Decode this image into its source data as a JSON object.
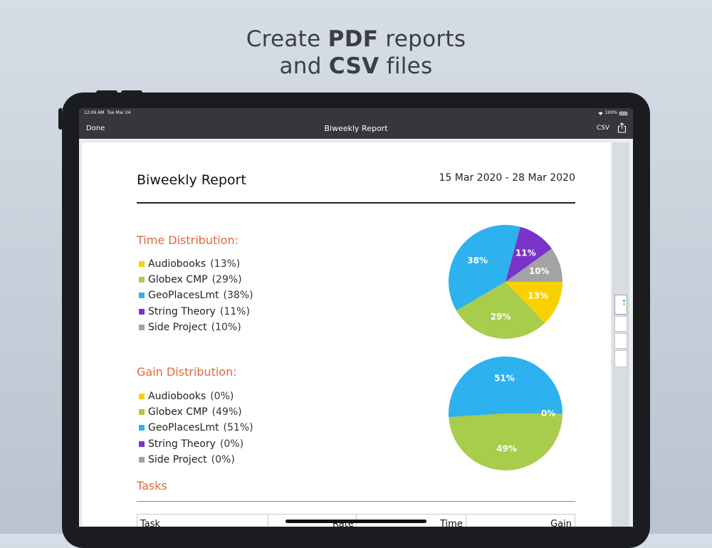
{
  "headline": {
    "line1_pre": "Create ",
    "line1_bold": "PDF",
    "line1_post": " reports",
    "line2_pre": "and ",
    "line2_bold": "CSV",
    "line2_post": " files"
  },
  "status_bar": {
    "time": "12:06 AM",
    "date": "Tue Mar 24",
    "battery": "100%"
  },
  "nav_bar": {
    "done_label": "Done",
    "title": "Biweekly Report",
    "csv_label": "CSV"
  },
  "report": {
    "title": "Biweekly Report",
    "date_range": "15 Mar 2020 - 28 Mar 2020",
    "time_distribution": {
      "heading": "Time Distribution:",
      "items": [
        {
          "name": "Audiobooks",
          "pct_label": "(13%)",
          "value": 13,
          "color": "#f9d100"
        },
        {
          "name": "Globex CMP",
          "pct_label": "(29%)",
          "value": 29,
          "color": "#a8cc4c"
        },
        {
          "name": "GeoPlacesLmt",
          "pct_label": "(38%)",
          "value": 38,
          "color": "#2db1ef"
        },
        {
          "name": "String Theory",
          "pct_label": "(11%)",
          "value": 11,
          "color": "#7a33c9"
        },
        {
          "name": "Side Project",
          "pct_label": "(10%)",
          "value": 10,
          "color": "#a3a3a3"
        }
      ]
    },
    "gain_distribution": {
      "heading": "Gain Distribution:",
      "items": [
        {
          "name": "Audiobooks",
          "pct_label": "(0%)",
          "value": 0,
          "color": "#f9d100"
        },
        {
          "name": "Globex CMP",
          "pct_label": "(49%)",
          "value": 49,
          "color": "#a8cc4c"
        },
        {
          "name": "GeoPlacesLmt",
          "pct_label": "(51%)",
          "value": 51,
          "color": "#2db1ef"
        },
        {
          "name": "String Theory",
          "pct_label": "(0%)",
          "value": 0,
          "color": "#7a33c9"
        },
        {
          "name": "Side Project",
          "pct_label": "(0%)",
          "value": 0,
          "color": "#a3a3a3"
        }
      ]
    },
    "tasks": {
      "heading": "Tasks",
      "columns": [
        "Task",
        "Rate",
        "Time",
        "Gain"
      ]
    }
  },
  "chart_data": [
    {
      "type": "pie",
      "categories": [
        "Audiobooks",
        "Globex CMP",
        "GeoPlacesLmt",
        "String Theory",
        "Side Project"
      ],
      "values": [
        13,
        29,
        38,
        11,
        10
      ],
      "labels": [
        "13%",
        "29%",
        "38%",
        "11%",
        "10%"
      ],
      "colors": [
        "#f9d100",
        "#a8cc4c",
        "#2db1ef",
        "#7a33c9",
        "#a3a3a3"
      ]
    },
    {
      "type": "pie",
      "categories": [
        "Audiobooks",
        "Globex CMP",
        "GeoPlacesLmt",
        "String Theory",
        "Side Project"
      ],
      "values": [
        0,
        49,
        51,
        0,
        0
      ],
      "labels": [
        "0%",
        "49%",
        "51%",
        "0%",
        "0%"
      ],
      "colors": [
        "#f9d100",
        "#a8cc4c",
        "#2db1ef",
        "#7a33c9",
        "#a3a3a3"
      ]
    }
  ]
}
